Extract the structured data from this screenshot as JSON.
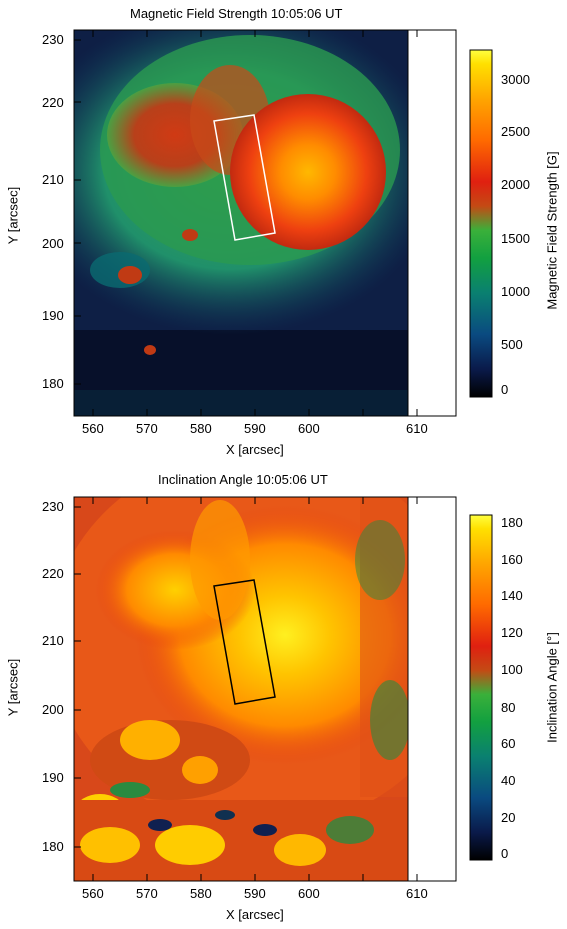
{
  "panels": [
    {
      "title": "Magnetic Field Strength 10:05:06 UT",
      "xlabel": "X [arcsec]",
      "ylabel": "Y [arcsec]",
      "x_ticks": [
        "560",
        "570",
        "580",
        "590",
        "600",
        "610"
      ],
      "y_ticks": [
        "230",
        "220",
        "210",
        "200",
        "190",
        "180"
      ],
      "colorbar": {
        "label": "Magnetic Field Strength [G]",
        "ticks": [
          "3000",
          "2500",
          "2000",
          "1500",
          "1000",
          "500",
          "0"
        ],
        "range": [
          0,
          3200
        ],
        "colors": [
          "#000000",
          "#0a1a4a",
          "#0a4a80",
          "#0a8070",
          "#12a040",
          "#3ab03a",
          "#c44a14",
          "#e02010",
          "#ff6a00",
          "#ffa600",
          "#ffe000",
          "#ffff40"
        ]
      },
      "box_color": "#ffffff"
    },
    {
      "title": "Inclination Angle 10:05:06 UT",
      "xlabel": "X [arcsec]",
      "ylabel": "Y [arcsec]",
      "x_ticks": [
        "560",
        "570",
        "580",
        "590",
        "600",
        "610"
      ],
      "y_ticks": [
        "230",
        "220",
        "210",
        "200",
        "190",
        "180"
      ],
      "colorbar": {
        "label": "Inclination Angle [°]",
        "ticks": [
          "180",
          "160",
          "140",
          "120",
          "100",
          "80",
          "60",
          "40",
          "20",
          "0"
        ],
        "range": [
          0,
          185
        ],
        "colors": [
          "#000000",
          "#0a1a4a",
          "#0a4a80",
          "#0a8070",
          "#12a040",
          "#3ab03a",
          "#c44a14",
          "#e02010",
          "#ff6a00",
          "#ffa600",
          "#ffe000",
          "#ffff40"
        ]
      },
      "box_color": "#000000"
    }
  ]
}
